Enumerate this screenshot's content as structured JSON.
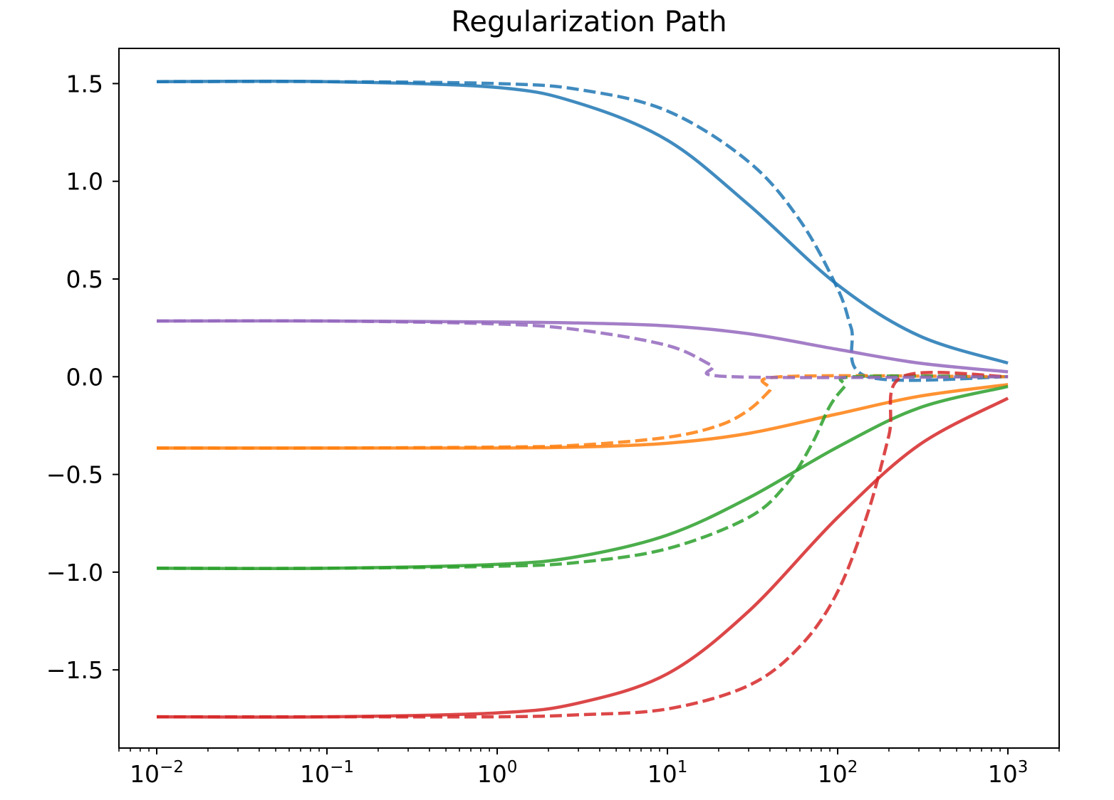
{
  "chart_data": {
    "type": "line",
    "title": "Regularization Path",
    "xlabel": "",
    "ylabel": "",
    "xscale": "log",
    "xlim": [
      0.006,
      2000
    ],
    "ylim": [
      -1.9,
      1.68
    ],
    "grid": false,
    "legend": "none",
    "x_ticks": [
      {
        "value": 0.01,
        "base": "10",
        "exp": "−2"
      },
      {
        "value": 0.1,
        "base": "10",
        "exp": "−1"
      },
      {
        "value": 1,
        "base": "10",
        "exp": "0"
      },
      {
        "value": 10,
        "base": "10",
        "exp": "1"
      },
      {
        "value": 100,
        "base": "10",
        "exp": "2"
      },
      {
        "value": 1000,
        "base": "10",
        "exp": "3"
      }
    ],
    "y_ticks": [
      {
        "value": 1.5,
        "label": "1.5"
      },
      {
        "value": 1.0,
        "label": "1.0"
      },
      {
        "value": 0.5,
        "label": "0.5"
      },
      {
        "value": 0.0,
        "label": "0.0"
      },
      {
        "value": -0.5,
        "label": "−0.5"
      },
      {
        "value": -1.0,
        "label": "−1.0"
      },
      {
        "value": -1.5,
        "label": "−1.5"
      }
    ],
    "series": [
      {
        "color": "#1f77b4",
        "style": "solid",
        "x": [
          0.01,
          0.1,
          1,
          3,
          10,
          30,
          100,
          300,
          1000
        ],
        "y": [
          1.51,
          1.51,
          1.48,
          1.4,
          1.21,
          0.88,
          0.47,
          0.21,
          0.07
        ]
      },
      {
        "color": "#1f77b4",
        "style": "dashed",
        "x": [
          0.01,
          0.1,
          1,
          3,
          10,
          30,
          60,
          100,
          120,
          150,
          1000
        ],
        "y": [
          1.51,
          1.51,
          1.5,
          1.47,
          1.36,
          1.1,
          0.8,
          0.45,
          0.25,
          0.0,
          0.0
        ]
      },
      {
        "color": "#ff7f0e",
        "style": "solid",
        "x": [
          0.01,
          0.1,
          1,
          3,
          10,
          30,
          100,
          300,
          1000
        ],
        "y": [
          -0.365,
          -0.365,
          -0.365,
          -0.36,
          -0.34,
          -0.29,
          -0.19,
          -0.1,
          -0.04
        ]
      },
      {
        "color": "#ff7f0e",
        "style": "dashed",
        "x": [
          0.01,
          0.1,
          1,
          3,
          10,
          20,
          30,
          40,
          47,
          1000
        ],
        "y": [
          -0.365,
          -0.365,
          -0.36,
          -0.35,
          -0.31,
          -0.25,
          -0.17,
          -0.07,
          0.0,
          0.0
        ]
      },
      {
        "color": "#2ca02c",
        "style": "solid",
        "x": [
          0.01,
          0.1,
          1,
          3,
          10,
          30,
          100,
          300,
          1000
        ],
        "y": [
          -0.98,
          -0.98,
          -0.96,
          -0.92,
          -0.81,
          -0.62,
          -0.36,
          -0.16,
          -0.05
        ]
      },
      {
        "color": "#2ca02c",
        "style": "dashed",
        "x": [
          0.01,
          0.1,
          1,
          3,
          10,
          30,
          50,
          70,
          90,
          110,
          125,
          1000
        ],
        "y": [
          -0.98,
          -0.98,
          -0.97,
          -0.95,
          -0.88,
          -0.72,
          -0.55,
          -0.35,
          -0.15,
          -0.05,
          0.0,
          0.0
        ]
      },
      {
        "color": "#d62728",
        "style": "solid",
        "x": [
          0.01,
          0.1,
          1,
          3,
          10,
          30,
          100,
          300,
          1000
        ],
        "y": [
          -1.74,
          -1.74,
          -1.72,
          -1.67,
          -1.52,
          -1.2,
          -0.72,
          -0.35,
          -0.11
        ]
      },
      {
        "color": "#d62728",
        "style": "dashed",
        "x": [
          0.01,
          0.1,
          1,
          3,
          10,
          30,
          60,
          100,
          150,
          200,
          240,
          1000
        ],
        "y": [
          -1.74,
          -1.74,
          -1.74,
          -1.73,
          -1.7,
          -1.58,
          -1.38,
          -1.1,
          -0.7,
          -0.3,
          0.0,
          0.0
        ]
      },
      {
        "color": "#9467bd",
        "style": "solid",
        "x": [
          0.01,
          0.1,
          1,
          3,
          10,
          30,
          100,
          300,
          1000
        ],
        "y": [
          0.285,
          0.285,
          0.28,
          0.275,
          0.26,
          0.22,
          0.14,
          0.07,
          0.025
        ]
      },
      {
        "color": "#9467bd",
        "style": "dashed",
        "x": [
          0.01,
          0.1,
          1,
          3,
          10,
          18,
          24,
          1000
        ],
        "y": [
          0.285,
          0.285,
          0.27,
          0.24,
          0.16,
          0.06,
          0.0,
          0.0
        ]
      }
    ]
  }
}
